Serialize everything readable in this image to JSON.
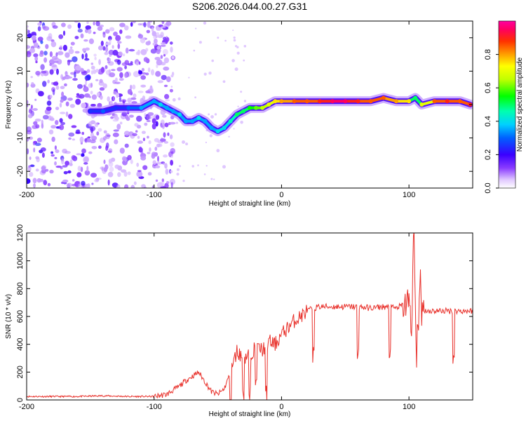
{
  "title": "S206.2026.044.00.27.G31",
  "chart_data": [
    {
      "type": "heatmap",
      "title": "S206.2026.044.00.27.G31",
      "xlabel": "Height of straight line (km)",
      "ylabel": "Frequency (Hz)",
      "xlim": [
        -200,
        150
      ],
      "ylim": [
        -25,
        25
      ],
      "x_ticks": [
        "-200",
        "-100",
        "0",
        "100"
      ],
      "y_ticks": [
        "20",
        "10",
        "0",
        "-10",
        "-20"
      ],
      "colorbar_label": "Normalized spectral amplitude",
      "colorbar_range": [
        0,
        1
      ],
      "colorbar_ticks": [
        "0.0",
        "0.2",
        "0.4",
        "0.6",
        "0.8"
      ],
      "ridge": [
        {
          "x": -150,
          "y": -2,
          "a": 0.25
        },
        {
          "x": -140,
          "y": -2,
          "a": 0.3
        },
        {
          "x": -130,
          "y": -1,
          "a": 0.25
        },
        {
          "x": -120,
          "y": -1,
          "a": 0.3
        },
        {
          "x": -110,
          "y": -1,
          "a": 0.35
        },
        {
          "x": -100,
          "y": 1,
          "a": 0.35
        },
        {
          "x": -95,
          "y": 0,
          "a": 0.4
        },
        {
          "x": -90,
          "y": -1,
          "a": 0.35
        },
        {
          "x": -85,
          "y": -2,
          "a": 0.35
        },
        {
          "x": -80,
          "y": -3,
          "a": 0.4
        },
        {
          "x": -75,
          "y": -5,
          "a": 0.35
        },
        {
          "x": -70,
          "y": -5,
          "a": 0.35
        },
        {
          "x": -65,
          "y": -4,
          "a": 0.4
        },
        {
          "x": -60,
          "y": -5,
          "a": 0.35
        },
        {
          "x": -55,
          "y": -7,
          "a": 0.35
        },
        {
          "x": -50,
          "y": -8,
          "a": 0.4
        },
        {
          "x": -45,
          "y": -7,
          "a": 0.4
        },
        {
          "x": -40,
          "y": -5,
          "a": 0.45
        },
        {
          "x": -35,
          "y": -3,
          "a": 0.5
        },
        {
          "x": -30,
          "y": -2,
          "a": 0.5
        },
        {
          "x": -25,
          "y": -1,
          "a": 0.55
        },
        {
          "x": -20,
          "y": -1,
          "a": 0.6
        },
        {
          "x": -15,
          "y": -1,
          "a": 0.65
        },
        {
          "x": -10,
          "y": 0,
          "a": 0.7
        },
        {
          "x": -5,
          "y": 1,
          "a": 0.75
        },
        {
          "x": 0,
          "y": 1,
          "a": 0.8
        },
        {
          "x": 10,
          "y": 1,
          "a": 0.85
        },
        {
          "x": 20,
          "y": 1,
          "a": 0.85
        },
        {
          "x": 30,
          "y": 1,
          "a": 0.9
        },
        {
          "x": 40,
          "y": 1,
          "a": 0.95
        },
        {
          "x": 50,
          "y": 1,
          "a": 0.95
        },
        {
          "x": 60,
          "y": 1,
          "a": 0.9
        },
        {
          "x": 70,
          "y": 1,
          "a": 0.85
        },
        {
          "x": 80,
          "y": 2,
          "a": 0.85
        },
        {
          "x": 90,
          "y": 1,
          "a": 0.8
        },
        {
          "x": 100,
          "y": 1,
          "a": 0.75
        },
        {
          "x": 105,
          "y": 2,
          "a": 0.5
        },
        {
          "x": 110,
          "y": 0,
          "a": 0.7
        },
        {
          "x": 120,
          "y": 1,
          "a": 0.85
        },
        {
          "x": 130,
          "y": 1,
          "a": 0.9
        },
        {
          "x": 140,
          "y": 1,
          "a": 0.85
        },
        {
          "x": 148,
          "y": 0,
          "a": 0.9
        }
      ]
    },
    {
      "type": "line",
      "xlabel": "Height of straight line (km)",
      "ylabel": "SNR (10 * v/v)",
      "xlim": [
        -200,
        150
      ],
      "ylim": [
        0,
        1200
      ],
      "x_ticks": [
        "-200",
        "-100",
        "0",
        "100"
      ],
      "y_ticks": [
        "0",
        "200",
        "400",
        "600",
        "800",
        "1000",
        "1200"
      ],
      "color": "#e8302a",
      "series": [
        {
          "name": "SNR",
          "x": [
            -200,
            -180,
            -160,
            -140,
            -120,
            -100,
            -90,
            -80,
            -75,
            -70,
            -65,
            -60,
            -55,
            -50,
            -45,
            -40,
            -35,
            -30,
            -25,
            -20,
            -15,
            -10,
            -5,
            0,
            5,
            10,
            15,
            20,
            25,
            30,
            40,
            50,
            60,
            70,
            80,
            90,
            95,
            100,
            102,
            104,
            106,
            108,
            110,
            115,
            120,
            130,
            140,
            150
          ],
          "y": [
            25,
            25,
            25,
            30,
            25,
            25,
            40,
            100,
            140,
            170,
            200,
            130,
            60,
            40,
            80,
            200,
            350,
            300,
            330,
            380,
            360,
            420,
            400,
            470,
            520,
            570,
            600,
            640,
            660,
            670,
            670,
            670,
            670,
            660,
            670,
            660,
            680,
            700,
            760,
            1200,
            200,
            1100,
            650,
            640,
            640,
            640,
            640,
            640
          ]
        }
      ]
    }
  ]
}
